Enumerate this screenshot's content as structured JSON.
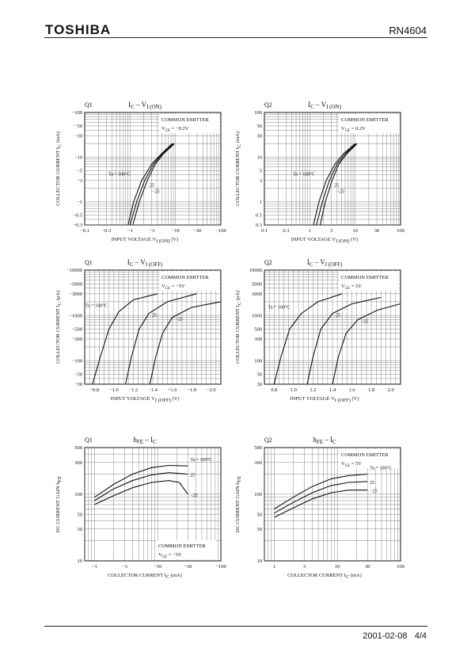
{
  "header": {
    "brand": "TOSHIBA",
    "part_number": "RN4604"
  },
  "footer": {
    "date": "2001-02-08",
    "page": "4/4"
  },
  "chart_data": [
    {
      "id": "q1-ic-vion",
      "type": "line",
      "transistor_label": "Q1",
      "title_main": "I",
      "title_sub": "C",
      "title_sep": " – V",
      "title_sub2": "I (ON)",
      "xlabel": "INPUT VOLTAGE  V",
      "xlabel_sub": "I (ON)",
      "xlabel_unit": "(V)",
      "ylabel": "COLLECTOR CURRENT  I",
      "ylabel_sub": "C",
      "ylabel_unit": "(mA)",
      "x_log": true,
      "y_log": true,
      "x_abs_range": [
        0.1,
        100
      ],
      "y_abs_range": [
        0.3,
        100
      ],
      "x_ticks": [
        "−0.1",
        "−0.3",
        "−1",
        "−3",
        "−10",
        "−30",
        "−100"
      ],
      "y_ticks": [
        "−100",
        "−50",
        "−30",
        "−10",
        "−5",
        "−3",
        "−1",
        "−0.5",
        "−0.3"
      ],
      "note_lines": [
        "COMMON EMITTER",
        "V",
        "CE",
        " = −0.2V"
      ],
      "series": [
        {
          "name": "Ta = 100°C",
          "x": [
            0.9,
            1.2,
            1.8,
            3,
            5,
            8.5
          ],
          "y": [
            0.3,
            1,
            3,
            7,
            12,
            20
          ]
        },
        {
          "name": "25",
          "x": [
            1.0,
            1.4,
            2.1,
            3.3,
            5.2,
            9
          ],
          "y": [
            0.3,
            1,
            3,
            7,
            12,
            20
          ]
        },
        {
          "name": "−25",
          "x": [
            1.15,
            1.6,
            2.4,
            3.6,
            5.5,
            9.5
          ],
          "y": [
            0.3,
            1,
            3,
            7,
            12,
            20
          ]
        }
      ]
    },
    {
      "id": "q2-ic-vion",
      "type": "line",
      "transistor_label": "Q2",
      "title_main": "I",
      "title_sub": "C",
      "title_sep": " – V",
      "title_sub2": "I (ON)",
      "xlabel": "INPUT VOLTAGE  V",
      "xlabel_sub": "I (ON)",
      "xlabel_unit": "(V)",
      "ylabel": "COLLECTOR CURRENT  I",
      "ylabel_sub": "C",
      "ylabel_unit": "(mA)",
      "x_log": true,
      "y_log": true,
      "x_abs_range": [
        0.1,
        100
      ],
      "y_abs_range": [
        0.3,
        100
      ],
      "x_ticks": [
        "0.1",
        "0.3",
        "1",
        "3",
        "10",
        "30",
        "100"
      ],
      "y_ticks": [
        "100",
        "50",
        "30",
        "10",
        "5",
        "3",
        "1",
        "0.5",
        "0.3"
      ],
      "note_lines": [
        "COMMON EMITTER",
        "V",
        "CE",
        " = 0.2V"
      ],
      "series": [
        {
          "name": "Ta = 100°C",
          "x": [
            1.2,
            1.6,
            2.3,
            3.6,
            5.6,
            10
          ],
          "y": [
            0.3,
            1,
            3,
            7,
            12,
            20
          ]
        },
        {
          "name": "25",
          "x": [
            1.4,
            1.9,
            2.7,
            4,
            6.1,
            10.5
          ],
          "y": [
            0.3,
            1,
            3,
            7,
            12,
            20
          ]
        },
        {
          "name": "−25",
          "x": [
            1.7,
            2.2,
            3.1,
            4.4,
            6.6,
            11
          ],
          "y": [
            0.3,
            1,
            3,
            7,
            12,
            20
          ]
        }
      ]
    },
    {
      "id": "q1-ic-vioff",
      "type": "line",
      "transistor_label": "Q1",
      "title_main": "I",
      "title_sub": "C",
      "title_sep": " – V",
      "title_sub2": "I (OFF)",
      "xlabel": "INPUT VOLTAGE  V",
      "xlabel_sub": "I (OFF)",
      "xlabel_unit": "(V)",
      "ylabel": "COLLECTOR CURRENT  I",
      "ylabel_sub": "C",
      "ylabel_unit": "(μA)",
      "x_log": false,
      "y_log": true,
      "x_abs_range": [
        0.7,
        2.1
      ],
      "y_abs_range": [
        30,
        10000
      ],
      "x_ticks": [
        "−0.8",
        "−1.0",
        "−1.2",
        "−1.4",
        "−1.6",
        "−1.8",
        "−2.0"
      ],
      "x_tick_vals": [
        0.8,
        1.0,
        1.2,
        1.4,
        1.6,
        1.8,
        2.0
      ],
      "y_ticks": [
        "−10000",
        "−5000",
        "−3000",
        "−1000",
        "−500",
        "−300",
        "−100",
        "−50",
        "−30"
      ],
      "y_tick_vals": [
        10000,
        5000,
        3000,
        1000,
        500,
        300,
        100,
        50,
        30
      ],
      "note_lines": [
        "COMMON EMITTER",
        "V",
        "CE",
        " = −5V"
      ],
      "series": [
        {
          "name": "Ta = 100°C",
          "x": [
            0.78,
            0.86,
            0.95,
            1.05,
            1.2,
            1.45
          ],
          "y": [
            30,
            120,
            500,
            1200,
            2200,
            3000
          ]
        },
        {
          "name": "25",
          "x": [
            1.12,
            1.18,
            1.26,
            1.36,
            1.55,
            1.85
          ],
          "y": [
            30,
            120,
            500,
            1100,
            2000,
            3000
          ]
        },
        {
          "name": "−25",
          "x": [
            1.37,
            1.43,
            1.5,
            1.6,
            1.8,
            2.1
          ],
          "y": [
            30,
            120,
            400,
            900,
            1500,
            2000
          ]
        }
      ]
    },
    {
      "id": "q2-ic-vioff",
      "type": "line",
      "transistor_label": "Q2",
      "title_main": "I",
      "title_sub": "C",
      "title_sep": " – V",
      "title_sub2": "I (OFF)",
      "xlabel": "INPUT VOLTAGE  V",
      "xlabel_sub": "I (OFF)",
      "xlabel_unit": "(V)",
      "ylabel": "COLLECTOR CURRENT  I",
      "ylabel_sub": "C",
      "ylabel_unit": "(μA)",
      "x_log": false,
      "y_log": true,
      "x_abs_range": [
        0.7,
        2.1
      ],
      "y_abs_range": [
        30,
        10000
      ],
      "x_ticks": [
        "0.8",
        "1.0",
        "1.2",
        "1.4",
        "1.6",
        "1.8",
        "2.0"
      ],
      "x_tick_vals": [
        0.8,
        1.0,
        1.2,
        1.4,
        1.6,
        1.8,
        2.0
      ],
      "y_ticks": [
        "10000",
        "5000",
        "3000",
        "1000",
        "500",
        "300",
        "100",
        "50",
        "30"
      ],
      "y_tick_vals": [
        10000,
        5000,
        3000,
        1000,
        500,
        300,
        100,
        50,
        30
      ],
      "note_lines": [
        "COMMON EMITTER",
        "V",
        "CE",
        " = 5V"
      ],
      "series": [
        {
          "name": "Ta = 100°C",
          "x": [
            0.8,
            0.87,
            0.96,
            1.08,
            1.25,
            1.5
          ],
          "y": [
            30,
            120,
            500,
            1100,
            2000,
            3000
          ]
        },
        {
          "name": "25",
          "x": [
            1.14,
            1.2,
            1.28,
            1.4,
            1.6,
            1.9
          ],
          "y": [
            30,
            120,
            500,
            1100,
            1800,
            2500
          ]
        },
        {
          "name": "−25",
          "x": [
            1.4,
            1.46,
            1.54,
            1.66,
            1.86,
            2.1
          ],
          "y": [
            30,
            120,
            400,
            800,
            1300,
            1800
          ]
        }
      ]
    },
    {
      "id": "q1-hfe-ic",
      "type": "line",
      "transistor_label": "Q1",
      "title_main": "h",
      "title_sub": "FE",
      "title_sep": " – I",
      "title_sub2": "C",
      "xlabel": "COLLECTOR CURRENT  I",
      "xlabel_sub": "C",
      "xlabel_unit": "(mA)",
      "ylabel": "DC CURRENT GAIN  h",
      "ylabel_sub": "FE",
      "ylabel_unit": "",
      "x_log": true,
      "y_log": true,
      "x_abs_range": [
        0.7,
        100
      ],
      "y_abs_range": [
        10,
        500
      ],
      "x_ticks": [
        "−1",
        "−3",
        "−10",
        "−30",
        "−100"
      ],
      "x_tick_vals": [
        1,
        3,
        10,
        30,
        100
      ],
      "y_ticks": [
        "500",
        "300",
        "100",
        "50",
        "30",
        "10"
      ],
      "y_tick_vals": [
        500,
        300,
        100,
        50,
        30,
        10
      ],
      "note_lines": [
        "COMMON EMITTER",
        "V",
        "CE",
        " = −5V"
      ],
      "series": [
        {
          "name": "Ta = 100°C",
          "x": [
            1,
            2,
            4,
            8,
            15,
            30
          ],
          "y": [
            90,
            140,
            200,
            250,
            270,
            265
          ]
        },
        {
          "name": "25",
          "x": [
            1,
            2,
            4,
            8,
            15,
            30
          ],
          "y": [
            80,
            120,
            160,
            195,
            210,
            200
          ]
        },
        {
          "name": "−25",
          "x": [
            1,
            2,
            4,
            8,
            15,
            22,
            30
          ],
          "y": [
            70,
            95,
            125,
            150,
            160,
            150,
            100
          ]
        }
      ]
    },
    {
      "id": "q2-hfe-ic",
      "type": "line",
      "transistor_label": "Q2",
      "title_main": "h",
      "title_sub": "FE",
      "title_sep": " – I",
      "title_sub2": "C",
      "xlabel": "COLLECTOR CURRENT  I",
      "xlabel_sub": "C",
      "xlabel_unit": "(mA)",
      "ylabel": "DC CURRENT GAIN  h",
      "ylabel_sub": "FE",
      "ylabel_unit": "",
      "x_log": true,
      "y_log": true,
      "x_abs_range": [
        0.7,
        100
      ],
      "y_abs_range": [
        10,
        500
      ],
      "x_ticks": [
        "1",
        "3",
        "10",
        "30",
        "100"
      ],
      "x_tick_vals": [
        1,
        3,
        10,
        30,
        100
      ],
      "y_ticks": [
        "500",
        "300",
        "100",
        "50",
        "30",
        "10"
      ],
      "y_tick_vals": [
        500,
        300,
        100,
        50,
        30,
        10
      ],
      "note_lines": [
        "COMMON EMITTER",
        "V",
        "CE",
        " = 5V"
      ],
      "series": [
        {
          "name": "Ta = 100°C",
          "x": [
            1,
            2,
            4,
            8,
            15,
            30
          ],
          "y": [
            60,
            90,
            130,
            170,
            190,
            200
          ]
        },
        {
          "name": "25",
          "x": [
            1,
            2,
            4,
            8,
            15,
            30
          ],
          "y": [
            52,
            75,
            105,
            135,
            150,
            155
          ]
        },
        {
          "name": "−25",
          "x": [
            1,
            2,
            4,
            8,
            15,
            30
          ],
          "y": [
            45,
            62,
            85,
            105,
            115,
            115
          ]
        }
      ]
    }
  ]
}
